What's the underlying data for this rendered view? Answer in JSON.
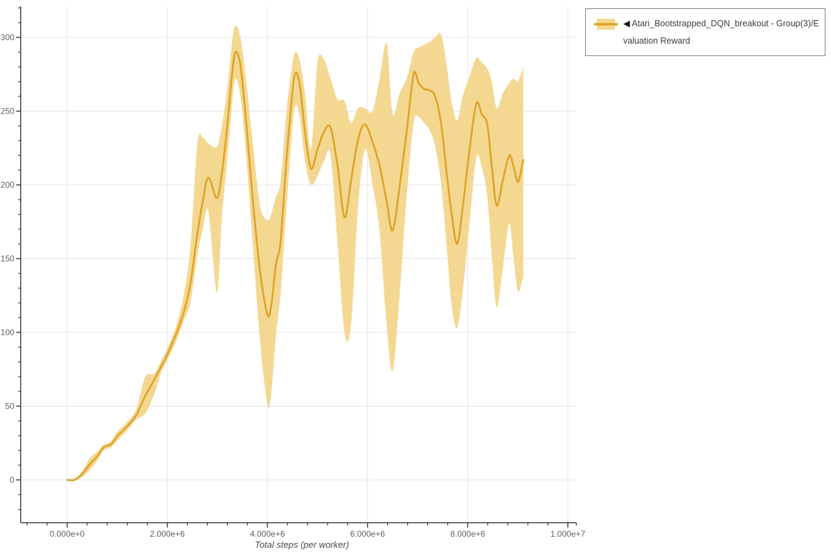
{
  "colors": {
    "line": "#DFA227",
    "band": "#F4D892",
    "grid": "#E4E4E4",
    "axis": "#333333",
    "tick_text": "#606060",
    "title_text": "#4a4a4a",
    "legend_border": "#828282",
    "legend_text": "#3c3c3c",
    "background": "#FFFFFF"
  },
  "legend": {
    "marker": "◀",
    "label": "Atari_Bootstrapped_DQN_breakout - Group(3)/Evaluation Reward"
  },
  "chart_data": {
    "type": "line",
    "title": "",
    "xlabel": "Total steps (per worker)",
    "ylabel": "",
    "grid": true,
    "legend_position": "top-right",
    "xlim": [
      -930000,
      10170000
    ],
    "ylim": [
      -29,
      321
    ],
    "x_ticks": {
      "values": [
        0,
        2000000,
        4000000,
        6000000,
        8000000,
        10000000
      ],
      "labels": [
        "0.000e+0",
        "2.000e+6",
        "4.000e+6",
        "6.000e+6",
        "8.000e+6",
        "1.000e+7"
      ]
    },
    "x_minor_step": 400000,
    "y_ticks": {
      "values": [
        0,
        50,
        100,
        150,
        200,
        250,
        300
      ],
      "labels": [
        "0",
        "50",
        "100",
        "150",
        "200",
        "250",
        "300"
      ]
    },
    "y_minor_step": 10,
    "x": [
      0,
      150000,
      300000,
      460000,
      600000,
      730000,
      870000,
      1010000,
      1190000,
      1380000,
      1560000,
      1740000,
      1880000,
      2000000,
      2190000,
      2330000,
      2460000,
      2600000,
      2710000,
      2820000,
      2990000,
      3090000,
      3200000,
      3290000,
      3360000,
      3460000,
      3570000,
      3710000,
      3850000,
      4000000,
      4080000,
      4170000,
      4260000,
      4360000,
      4440000,
      4540000,
      4640000,
      4750000,
      4870000,
      5000000,
      5130000,
      5260000,
      5400000,
      5540000,
      5670000,
      5810000,
      5950000,
      6100000,
      6240000,
      6380000,
      6500000,
      6640000,
      6780000,
      6920000,
      7020000,
      7130000,
      7240000,
      7350000,
      7470000,
      7580000,
      7680000,
      7790000,
      7900000,
      8030000,
      8170000,
      8280000,
      8390000,
      8480000,
      8580000,
      8700000,
      8830000,
      8910000,
      9000000,
      9070000,
      9110000
    ],
    "series": [
      {
        "name": "mean",
        "values": [
          0,
          0,
          4,
          11,
          16,
          22,
          24,
          30,
          36,
          44,
          57,
          68,
          77,
          85,
          100,
          114,
          133,
          167,
          189,
          205,
          191,
          208,
          241,
          274,
          290,
          281,
          245,
          189,
          142,
          112,
          119,
          146,
          161,
          208,
          241,
          274,
          269,
          236,
          211,
          224,
          236,
          239,
          213,
          178,
          203,
          231,
          241,
          229,
          213,
          189,
          169,
          199,
          236,
          275,
          269,
          265,
          264,
          260,
          241,
          208,
          180,
          160,
          185,
          222,
          255,
          248,
          241,
          213,
          186,
          203,
          220,
          213,
          202,
          210,
          217
        ]
      },
      {
        "name": "band_lower",
        "values": [
          0,
          0,
          2,
          7,
          13,
          20,
          22,
          27,
          33,
          41,
          45,
          58,
          73,
          81,
          95,
          108,
          120,
          152,
          170,
          182,
          127,
          178,
          218,
          254,
          272,
          260,
          222,
          158,
          95,
          51,
          60,
          98,
          125,
          175,
          212,
          252,
          247,
          216,
          200,
          206,
          216,
          220,
          160,
          100,
          105,
          185,
          224,
          200,
          168,
          105,
          74,
          125,
          192,
          242,
          246,
          242,
          237,
          226,
          200,
          158,
          118,
          103,
          128,
          172,
          218,
          212,
          192,
          152,
          117,
          143,
          174,
          152,
          128,
          133,
          138
        ]
      },
      {
        "name": "band_upper",
        "values": [
          0,
          1,
          6,
          15,
          19,
          24,
          26,
          33,
          39,
          48,
          70,
          72,
          81,
          89,
          106,
          126,
          158,
          228,
          232,
          228,
          226,
          240,
          266,
          296,
          308,
          300,
          272,
          228,
          186,
          176,
          181,
          192,
          202,
          242,
          268,
          289,
          285,
          262,
          224,
          283,
          285,
          272,
          258,
          257,
          242,
          252,
          252,
          250,
          272,
          296,
          248,
          262,
          272,
          290,
          293,
          295,
          297,
          300,
          302,
          281,
          256,
          244,
          260,
          273,
          286,
          283,
          279,
          270,
          252,
          262,
          269,
          272,
          270,
          276,
          280
        ]
      }
    ]
  }
}
